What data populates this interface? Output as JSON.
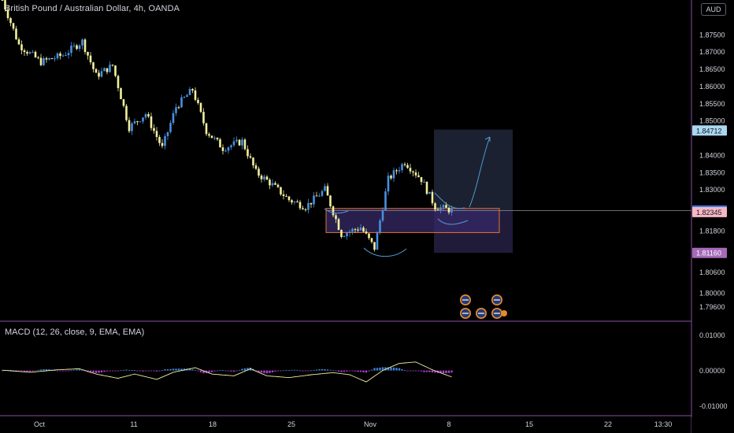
{
  "header": {
    "title": "British Pound / Australian Dollar, 4h, OANDA",
    "currency": "AUD"
  },
  "colors": {
    "background": "#000000",
    "candle_up": "#4a8fe0",
    "candle_down": "#f2ef9e",
    "macd_line": "#f2ef9e",
    "hist_pos": "#3f7fd6",
    "hist_neg": "#b43fd8",
    "zone_stroke": "#e5772a",
    "zone_fill": "#352a66",
    "projection_fill": "#1c2333",
    "annotation": "#4f9bd1",
    "separator": "#8c4ea0"
  },
  "chart_data": [
    {
      "type": "candlestick",
      "title": "British Pound / Australian Dollar, 4h, OANDA",
      "ylim": [
        1.792,
        1.885
      ],
      "y_ticks": [
        "1.87500",
        "1.87000",
        "1.86500",
        "1.86000",
        "1.85500",
        "1.85000",
        "1.84000",
        "1.83500",
        "1.83000",
        "1.81800",
        "1.80600",
        "1.80000",
        "1.79600"
      ],
      "x_ticks": [
        "Oct",
        "11",
        "18",
        "25",
        "Nov",
        "8",
        "15",
        "22",
        "13:30"
      ],
      "price_labels": [
        {
          "value": "1.84712",
          "bg": "#aad8f0",
          "fg": "#131722"
        },
        {
          "value": "1.82391",
          "bg": "#2e74e0",
          "fg": "#ffffff"
        },
        {
          "value": "1.82345",
          "bg": "#f7b7c4",
          "fg": "#131722"
        },
        {
          "value": "1.81160",
          "bg": "#a66ab8",
          "fg": "#ffffff"
        }
      ],
      "trend_path": [
        [
          0,
          1.885
        ],
        [
          6,
          1.872
        ],
        [
          14,
          1.867
        ],
        [
          22,
          1.869
        ],
        [
          29,
          1.873
        ],
        [
          34,
          1.863
        ],
        [
          40,
          1.866
        ],
        [
          46,
          1.848
        ],
        [
          52,
          1.852
        ],
        [
          58,
          1.842
        ],
        [
          63,
          1.854
        ],
        [
          69,
          1.859
        ],
        [
          74,
          1.847
        ],
        [
          80,
          1.842
        ],
        [
          87,
          1.844
        ],
        [
          92,
          1.835
        ],
        [
          97,
          1.832
        ],
        [
          104,
          1.827
        ],
        [
          110,
          1.825
        ],
        [
          117,
          1.83
        ],
        [
          123,
          1.817
        ],
        [
          130,
          1.819
        ],
        [
          135,
          1.813
        ],
        [
          140,
          1.833
        ],
        [
          146,
          1.838
        ],
        [
          152,
          1.833
        ],
        [
          157,
          1.825
        ],
        [
          163,
          1.824
        ]
      ],
      "demand_zone": {
        "top": 1.8245,
        "bottom": 1.8175
      },
      "projection": {
        "top": 1.8474,
        "bottom": 1.8116,
        "entry": 1.8239
      }
    },
    {
      "type": "macd",
      "label": "MACD (12, 26, close, 9, EMA, EMA)",
      "ylim": [
        -0.0125,
        0.013
      ],
      "y_ticks": [
        "0.01000",
        "0.00000",
        "-0.01000"
      ],
      "macd_path": [
        [
          0,
          0.0001
        ],
        [
          10,
          -0.0005
        ],
        [
          20,
          0.0002
        ],
        [
          28,
          0.0005
        ],
        [
          34,
          -0.001
        ],
        [
          42,
          -0.0022
        ],
        [
          48,
          -0.001
        ],
        [
          56,
          -0.0025
        ],
        [
          62,
          -0.0005
        ],
        [
          70,
          0.0008
        ],
        [
          76,
          -0.001
        ],
        [
          84,
          -0.0015
        ],
        [
          90,
          0.0005
        ],
        [
          96,
          -0.0015
        ],
        [
          104,
          -0.002
        ],
        [
          112,
          -0.0012
        ],
        [
          120,
          -0.0006
        ],
        [
          126,
          -0.0012
        ],
        [
          132,
          -0.0032
        ],
        [
          138,
          0.0
        ],
        [
          144,
          0.002
        ],
        [
          150,
          0.0024
        ],
        [
          156,
          0.0002
        ],
        [
          163,
          -0.0018
        ]
      ]
    }
  ]
}
